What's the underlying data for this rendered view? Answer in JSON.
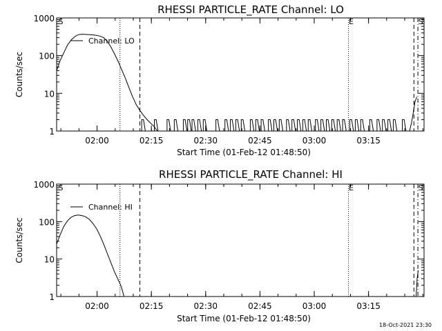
{
  "footer": {
    "timestamp": "18-Oct-2021 23:30"
  },
  "chart_data": [
    {
      "type": "line",
      "title": "RHESSI PARTICLE_RATE Channel: LO",
      "xlabel": "Start Time (01-Feb-12 01:48:50)",
      "ylabel": "Counts/sec",
      "yscale": "log",
      "ylim": [
        1,
        1000
      ],
      "xlim_minutes_since_start": [
        0,
        101.5
      ],
      "x_ticks": [
        {
          "label": "02:00",
          "t": 11.17
        },
        {
          "label": "02:15",
          "t": 26.17
        },
        {
          "label": "02:30",
          "t": 41.17
        },
        {
          "label": "02:45",
          "t": 56.17
        },
        {
          "label": "03:00",
          "t": 71.17
        },
        {
          "label": "03:15",
          "t": 86.17
        }
      ],
      "y_ticks": [
        {
          "label": "1",
          "v": 1
        },
        {
          "label": "10",
          "v": 10
        },
        {
          "label": "100",
          "v": 100
        },
        {
          "label": "1000",
          "v": 1000
        }
      ],
      "legend": {
        "position": "top-left",
        "entries": [
          "Channel: LO"
        ]
      },
      "markers": [
        {
          "label": "S",
          "t": 0,
          "style": "none"
        },
        {
          "label": "",
          "t": 17.5,
          "style": "dotted"
        },
        {
          "label": "",
          "t": 23.0,
          "style": "dashed"
        },
        {
          "label": "E",
          "t": 80.6,
          "style": "dotted"
        },
        {
          "label": "",
          "t": 98.7,
          "style": "dashed"
        },
        {
          "label": "S",
          "t": 99.8,
          "style": "dashdot"
        }
      ],
      "series": [
        {
          "name": "Channel: LO",
          "points": [
            [
              0,
              40
            ],
            [
              1.0,
              75
            ],
            [
              2.0,
              120
            ],
            [
              3.0,
              190
            ],
            [
              4.0,
              260
            ],
            [
              5.0,
              320
            ],
            [
              6.0,
              360
            ],
            [
              7.0,
              370
            ],
            [
              8.0,
              365
            ],
            [
              9.0,
              360
            ],
            [
              10.0,
              355
            ],
            [
              11.0,
              345
            ],
            [
              12.0,
              330
            ],
            [
              13.0,
              300
            ],
            [
              14.0,
              240
            ],
            [
              15.0,
              170
            ],
            [
              16.0,
              110
            ],
            [
              17.0,
              70
            ],
            [
              18.0,
              42
            ],
            [
              19.0,
              25
            ],
            [
              20.0,
              14
            ],
            [
              21.0,
              8
            ],
            [
              22.0,
              5
            ],
            [
              23.0,
              3.5
            ],
            [
              24.0,
              2.6
            ],
            [
              25.0,
              2
            ],
            [
              26.0,
              1.6
            ],
            [
              27.0,
              1.3
            ],
            [
              27.8,
              1
            ],
            [
              30.0,
              1
            ],
            [
              35.0,
              1
            ],
            [
              40.0,
              1
            ],
            [
              45.0,
              1
            ],
            [
              50.0,
              1
            ],
            [
              55.0,
              1
            ],
            [
              60.0,
              1
            ],
            [
              65.0,
              1
            ],
            [
              70.0,
              1
            ],
            [
              75.0,
              1
            ],
            [
              80.0,
              1
            ],
            [
              85.0,
              1
            ],
            [
              90.0,
              1
            ],
            [
              95.0,
              1
            ],
            [
              97.5,
              1
            ],
            [
              98.0,
              1.6
            ],
            [
              98.5,
              3
            ],
            [
              99.0,
              6
            ],
            [
              99.5,
              8
            ]
          ],
          "noise_spikes": [
            [
              23.5,
              2
            ],
            [
              27.0,
              2
            ],
            [
              30.5,
              2
            ],
            [
              32.5,
              2
            ],
            [
              35.0,
              2
            ],
            [
              36.2,
              2
            ],
            [
              37.4,
              2
            ],
            [
              39.0,
              2
            ],
            [
              40.5,
              2
            ],
            [
              44.0,
              2
            ],
            [
              46.5,
              2
            ],
            [
              48.0,
              2
            ],
            [
              49.5,
              2
            ],
            [
              51.0,
              2
            ],
            [
              53.5,
              2
            ],
            [
              55.0,
              2
            ],
            [
              56.5,
              2
            ],
            [
              58.5,
              2
            ],
            [
              60.0,
              2
            ],
            [
              61.5,
              2
            ],
            [
              63.5,
              2
            ],
            [
              65.0,
              2
            ],
            [
              66.5,
              2
            ],
            [
              68.0,
              2
            ],
            [
              69.5,
              2
            ],
            [
              71.5,
              2
            ],
            [
              73.0,
              2
            ],
            [
              74.5,
              2
            ],
            [
              76.0,
              2
            ],
            [
              77.5,
              2
            ],
            [
              79.0,
              2
            ],
            [
              81.0,
              2
            ],
            [
              82.5,
              2
            ],
            [
              84.0,
              2
            ],
            [
              86.5,
              2
            ],
            [
              88.5,
              2
            ],
            [
              90.0,
              2
            ],
            [
              91.5,
              2
            ],
            [
              93.0,
              2
            ],
            [
              95.5,
              2
            ]
          ]
        }
      ]
    },
    {
      "type": "line",
      "title": "RHESSI PARTICLE_RATE Channel: HI",
      "xlabel": "Start Time (01-Feb-12 01:48:50)",
      "ylabel": "Counts/sec",
      "yscale": "log",
      "ylim": [
        1,
        1000
      ],
      "xlim_minutes_since_start": [
        0,
        101.5
      ],
      "x_ticks": [
        {
          "label": "02:00",
          "t": 11.17
        },
        {
          "label": "02:15",
          "t": 26.17
        },
        {
          "label": "02:30",
          "t": 41.17
        },
        {
          "label": "02:45",
          "t": 56.17
        },
        {
          "label": "03:00",
          "t": 71.17
        },
        {
          "label": "03:15",
          "t": 86.17
        }
      ],
      "y_ticks": [
        {
          "label": "1",
          "v": 1
        },
        {
          "label": "10",
          "v": 10
        },
        {
          "label": "100",
          "v": 100
        },
        {
          "label": "1000",
          "v": 1000
        }
      ],
      "legend": {
        "position": "top-left",
        "entries": [
          "Channel: HI"
        ]
      },
      "markers": [
        {
          "label": "S",
          "t": 0,
          "style": "none"
        },
        {
          "label": "",
          "t": 17.5,
          "style": "dotted"
        },
        {
          "label": "",
          "t": 23.0,
          "style": "dashed"
        },
        {
          "label": "E",
          "t": 80.6,
          "style": "dotted"
        },
        {
          "label": "",
          "t": 98.7,
          "style": "dashed"
        },
        {
          "label": "S",
          "t": 99.8,
          "style": "dashdot"
        }
      ],
      "series": [
        {
          "name": "Channel: HI",
          "points": [
            [
              0,
              25
            ],
            [
              1.0,
              45
            ],
            [
              2.0,
              75
            ],
            [
              3.0,
              105
            ],
            [
              4.0,
              130
            ],
            [
              5.0,
              145
            ],
            [
              6.0,
              150
            ],
            [
              7.0,
              145
            ],
            [
              8.0,
              135
            ],
            [
              9.0,
              115
            ],
            [
              10.0,
              90
            ],
            [
              11.0,
              65
            ],
            [
              12.0,
              42
            ],
            [
              13.0,
              25
            ],
            [
              14.0,
              14
            ],
            [
              15.0,
              8
            ],
            [
              16.0,
              4.5
            ],
            [
              17.0,
              2.8
            ],
            [
              17.8,
              1.9
            ],
            [
              18.3,
              1.3
            ],
            [
              18.6,
              1
            ]
          ],
          "tail_points": [
            [
              99.3,
              1
            ],
            [
              99.6,
              3
            ],
            [
              99.9,
              5
            ]
          ],
          "noise_spikes": []
        }
      ]
    }
  ]
}
